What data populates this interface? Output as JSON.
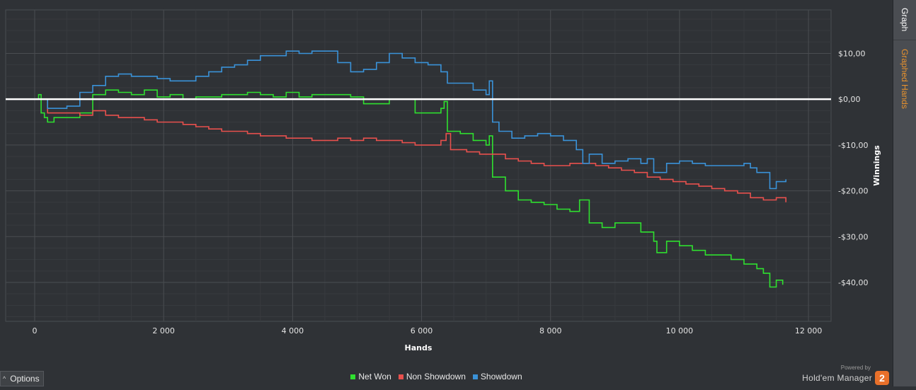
{
  "side_tabs": {
    "graph": "Graph",
    "graphed_hands": "Graphed Hands"
  },
  "options": {
    "label": "Options"
  },
  "branding": {
    "powered_by": "Powered by",
    "name": "Hold'em Manager",
    "logo_text": "2"
  },
  "colors": {
    "net_won": "#2fe02f",
    "non_showdown": "#e8504d",
    "showdown": "#3a92d8",
    "zero_line": "#ffffff"
  },
  "chart_data": {
    "type": "line",
    "xlabel": "Hands",
    "ylabel": "Winnings",
    "xlim": [
      -450,
      12350
    ],
    "ylim": [
      -48.5,
      19.5
    ],
    "x_ticks": [
      0,
      2000,
      4000,
      6000,
      8000,
      10000,
      12000
    ],
    "x_tick_labels": [
      "0",
      "2 000",
      "4 000",
      "6 000",
      "8 000",
      "10 000",
      "12 000"
    ],
    "y_ticks": [
      10,
      0,
      -10,
      -20,
      -30,
      -40
    ],
    "y_tick_labels": [
      "$10,00",
      "$0,00",
      "-$10,00",
      "-$20,00",
      "-$30,00",
      "-$40,00"
    ],
    "grid": true,
    "legend_position": "bottom-center",
    "series": [
      {
        "key": "net_won",
        "name": "Net Won",
        "x": [
          0,
          60,
          100,
          150,
          200,
          300,
          500,
          700,
          900,
          1100,
          1300,
          1500,
          1700,
          1900,
          2100,
          2300,
          2500,
          2700,
          2900,
          3100,
          3300,
          3500,
          3700,
          3900,
          4100,
          4300,
          4500,
          4700,
          4900,
          5100,
          5300,
          5500,
          5700,
          5900,
          6100,
          6300,
          6350,
          6400,
          6600,
          6800,
          7000,
          7050,
          7100,
          7300,
          7500,
          7700,
          7900,
          8100,
          8300,
          8450,
          8600,
          8800,
          9000,
          9200,
          9400,
          9600,
          9650,
          9800,
          10000,
          10200,
          10400,
          10600,
          10800,
          11000,
          11200,
          11300,
          11400,
          11500,
          11600
        ],
        "y": [
          0,
          1,
          -3,
          -4,
          -5,
          -4,
          -4,
          -3,
          1,
          2,
          1.5,
          1,
          2,
          0.5,
          1,
          0,
          0.5,
          0.5,
          1,
          1,
          1.5,
          1,
          0.5,
          1.5,
          0.5,
          1,
          1,
          1,
          0.5,
          -1,
          -1,
          0,
          0,
          -3,
          -3,
          -2,
          -0.5,
          -7,
          -7.5,
          -9,
          -10,
          -8,
          -17,
          -20,
          -22,
          -22.5,
          -23,
          -24,
          -24.5,
          -22,
          -27,
          -28,
          -27,
          -27,
          -29,
          -31,
          -33.5,
          -31,
          -32,
          -33,
          -34,
          -34,
          -35,
          -36,
          -37,
          -38,
          -41,
          -39.5,
          -40.5
        ]
      },
      {
        "key": "non_showdown",
        "name": "Non Showdown",
        "x": [
          0,
          200,
          500,
          700,
          900,
          1100,
          1300,
          1500,
          1700,
          1900,
          2100,
          2300,
          2500,
          2700,
          2900,
          3100,
          3300,
          3500,
          3700,
          3900,
          4100,
          4300,
          4500,
          4700,
          4900,
          5100,
          5300,
          5500,
          5700,
          5900,
          6100,
          6300,
          6380,
          6450,
          6700,
          6900,
          7100,
          7300,
          7500,
          7700,
          7900,
          8100,
          8300,
          8500,
          8700,
          8900,
          9100,
          9300,
          9500,
          9700,
          9900,
          10100,
          10300,
          10500,
          10700,
          10900,
          11100,
          11300,
          11500,
          11650
        ],
        "y": [
          0,
          -3,
          -3,
          -3.5,
          -2.5,
          -3.5,
          -4,
          -4,
          -4.5,
          -5,
          -5,
          -5.5,
          -6,
          -6.5,
          -7,
          -7,
          -7.5,
          -8,
          -8,
          -8.5,
          -8.5,
          -9,
          -9,
          -8.5,
          -9,
          -8.5,
          -9,
          -9,
          -9.5,
          -10,
          -10,
          -9,
          -7.5,
          -11,
          -11.5,
          -12,
          -12,
          -13,
          -13.5,
          -14,
          -14.5,
          -14.5,
          -14,
          -14,
          -14.5,
          -15,
          -15.5,
          -16,
          -17,
          -17.5,
          -18,
          -18.5,
          -19,
          -19.5,
          -20,
          -20.5,
          -21.5,
          -22,
          -21.5,
          -22.5
        ]
      },
      {
        "key": "showdown",
        "name": "Showdown",
        "x": [
          0,
          100,
          200,
          500,
          700,
          900,
          1100,
          1300,
          1500,
          1700,
          1900,
          2100,
          2300,
          2500,
          2700,
          2900,
          3100,
          3300,
          3500,
          3700,
          3900,
          4100,
          4300,
          4500,
          4700,
          4900,
          5100,
          5300,
          5500,
          5700,
          5900,
          6100,
          6300,
          6400,
          6600,
          6800,
          7000,
          7050,
          7100,
          7200,
          7400,
          7600,
          7800,
          8000,
          8200,
          8400,
          8500,
          8600,
          8800,
          9000,
          9200,
          9400,
          9500,
          9600,
          9800,
          10000,
          10200,
          10400,
          10600,
          10800,
          11000,
          11100,
          11200,
          11400,
          11500,
          11650
        ],
        "y": [
          0,
          0,
          -2,
          -1.5,
          1.5,
          3,
          5,
          5.5,
          5,
          5,
          4.5,
          4,
          4,
          5,
          6,
          7,
          7.5,
          8.5,
          9.5,
          9.5,
          10.5,
          10,
          10.5,
          10.5,
          8,
          6,
          6.5,
          8,
          10,
          9,
          8,
          7.5,
          6,
          3.5,
          3.5,
          2,
          1,
          4,
          -5,
          -7,
          -8.5,
          -8,
          -7.5,
          -8,
          -9,
          -11,
          -14,
          -12,
          -14,
          -13.5,
          -13,
          -14,
          -13,
          -16,
          -14,
          -13.5,
          -14,
          -14.5,
          -14.5,
          -14.5,
          -14,
          -15,
          -16,
          -19.5,
          -18,
          -17.5
        ]
      }
    ]
  }
}
